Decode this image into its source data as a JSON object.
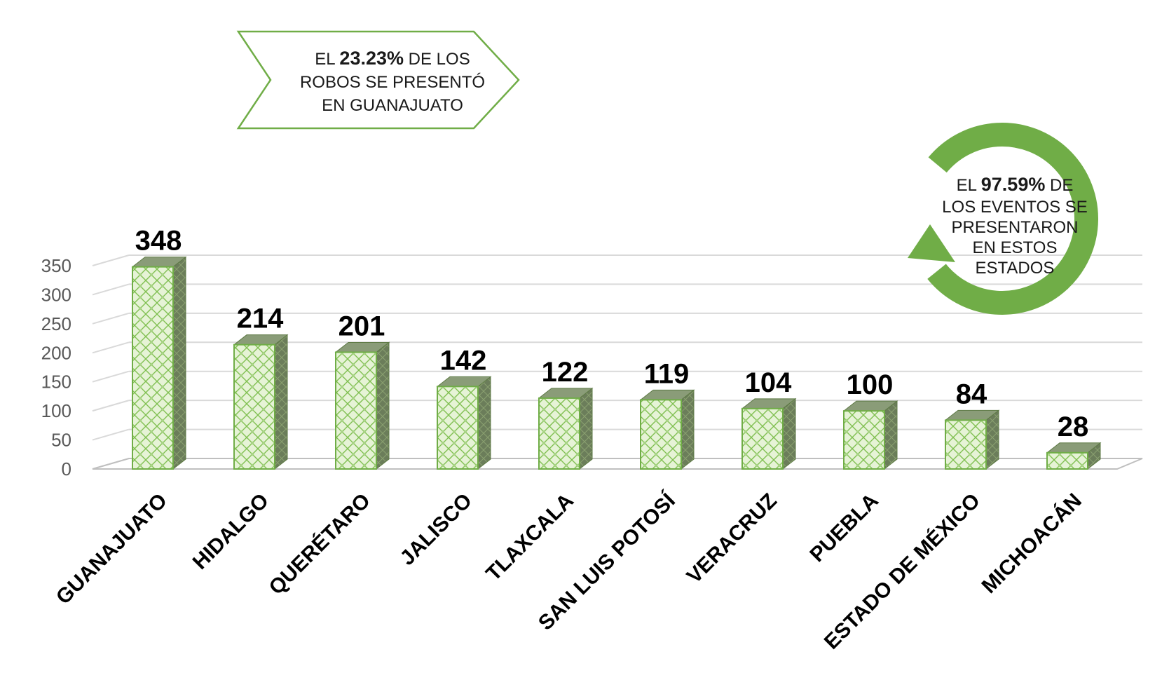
{
  "chart_data": {
    "type": "bar",
    "categories": [
      "GUANAJUATO",
      "HIDALGO",
      "QUERÉTARO",
      "JALISCO",
      "TLAXCALA",
      "SAN LUIS POTOSÍ",
      "VERACRUZ",
      "PUEBLA",
      "ESTADO DE MÉXICO",
      "MICHOACÁN"
    ],
    "values": [
      348,
      214,
      201,
      142,
      122,
      119,
      104,
      100,
      84,
      28
    ],
    "data_labels": [
      "348",
      "214",
      "201",
      "142",
      "122",
      "119",
      "104",
      "100",
      "84",
      "28"
    ],
    "title": "",
    "xlabel": "",
    "ylabel": "",
    "ylim": [
      0,
      350
    ],
    "yticks": [
      0,
      50,
      100,
      150,
      200,
      250,
      300,
      350
    ],
    "grid": true,
    "bar_style": "3d-column-hatched",
    "colors": {
      "bar_fill": "#e6f3d6",
      "bar_pattern": "#7fbf50",
      "bar_side": "#6b7d5a",
      "bar_top": "#8a9c78",
      "accent": "#70ad47",
      "grid": "#d9d9d9"
    }
  },
  "annotations": {
    "guanajuato_note": {
      "prefix": "EL ",
      "highlight": "23.23%",
      "line1_suffix": " DE LOS",
      "line2": "ROBOS SE PRESENTÓ",
      "line3": "EN GUANAJUATO"
    },
    "cycle_note": {
      "prefix": "EL ",
      "highlight": "97.59%",
      "line1_suffix": " DE",
      "line2": "LOS EVENTOS SE",
      "line3": "PRESENTARON",
      "line4": "EN ESTOS",
      "line5": "ESTADOS"
    }
  },
  "icons": {
    "cycle_arrow": "circular-arrow-icon"
  }
}
